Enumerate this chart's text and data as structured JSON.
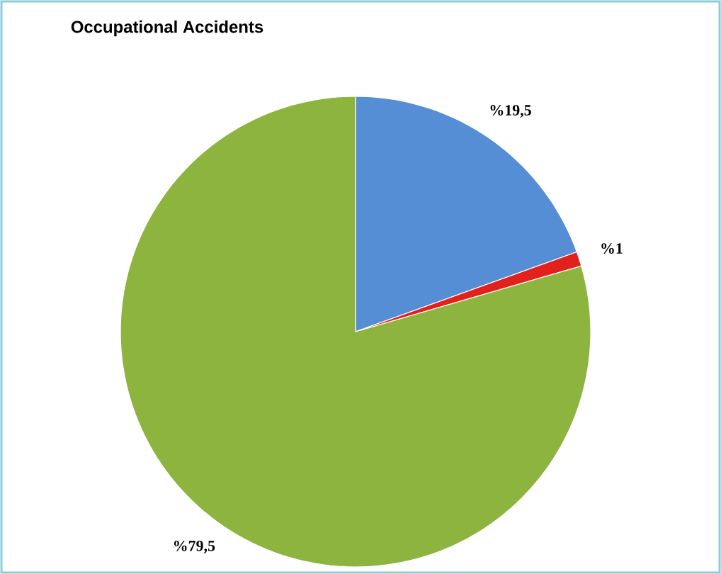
{
  "chart_data": {
    "type": "pie",
    "title": "Occupational Accidents",
    "categories": [
      null,
      null,
      null
    ],
    "values": [
      19.5,
      1,
      79.5
    ],
    "colors": [
      "#558ed5",
      "#e2201c",
      "#8db43e"
    ],
    "value_labels": [
      "%19,5",
      "%1",
      "%79,5"
    ]
  }
}
